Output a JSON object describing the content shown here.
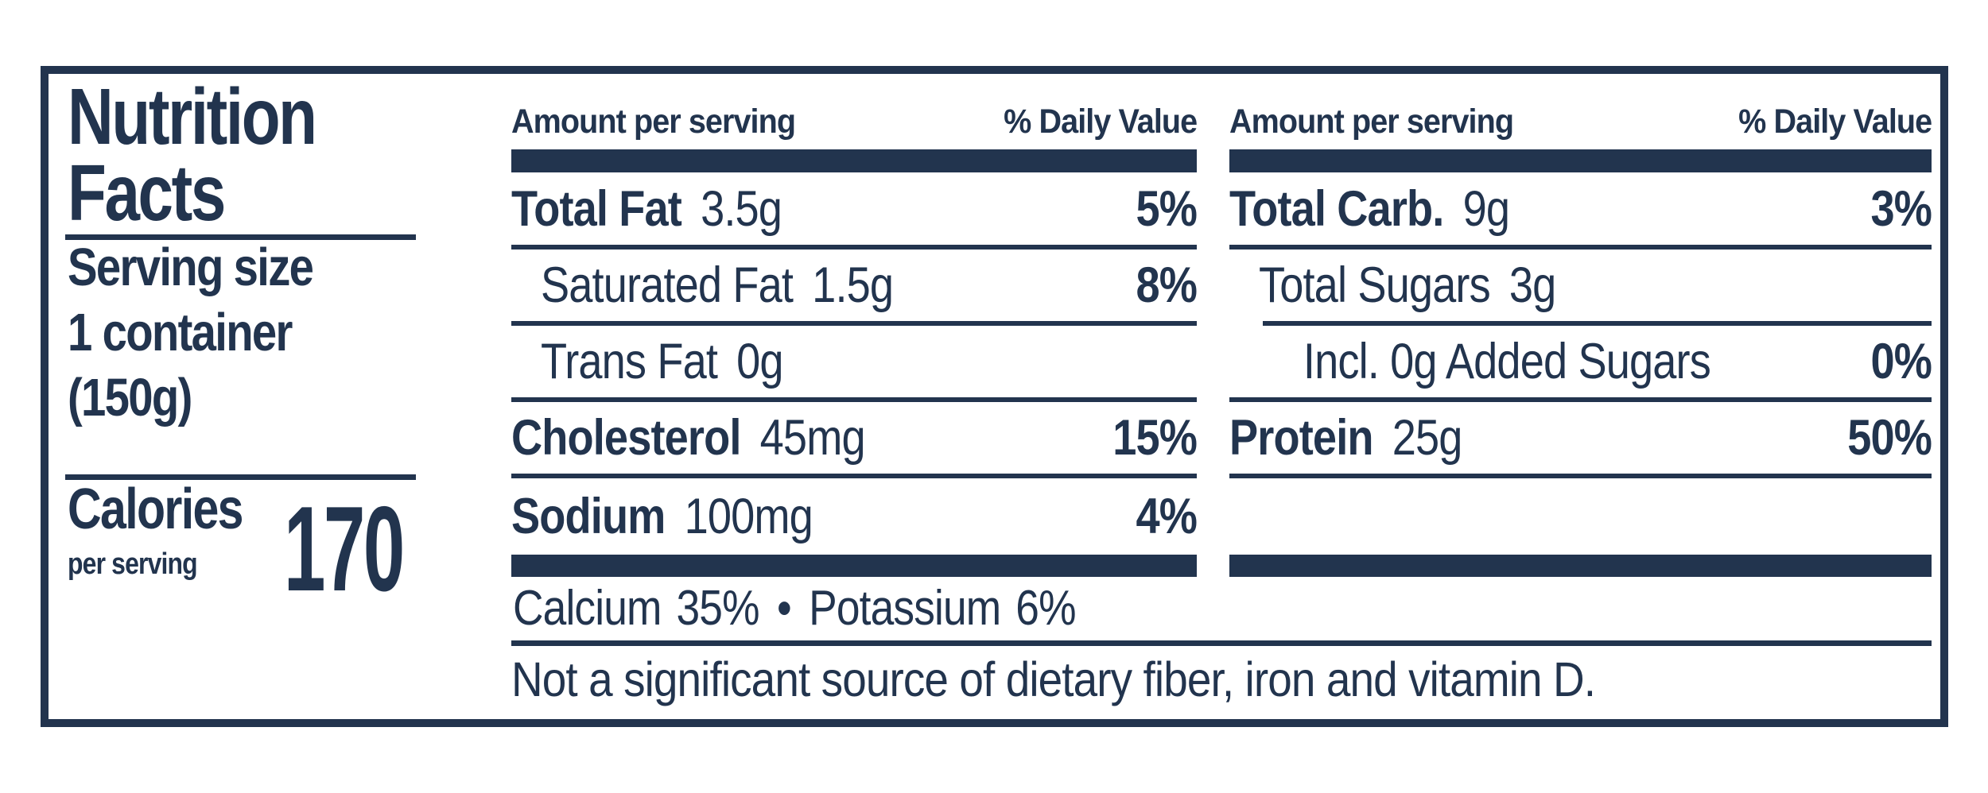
{
  "nutrition_label": {
    "title": {
      "line1": "Nutrition",
      "line2": "Facts"
    },
    "serving": {
      "label": "Serving size",
      "line1": "1 container",
      "line2": "(150g)"
    },
    "calories": {
      "label": "Calories",
      "sublabel": "per serving",
      "value": "170"
    },
    "columns": [
      {
        "header_left": "Amount per serving",
        "header_right": "% Daily Value",
        "rows": [
          {
            "name": "Total Fat",
            "amount": "3.5g",
            "dv": "5%"
          },
          {
            "name": "Saturated Fat",
            "amount": "1.5g",
            "dv": "8%"
          },
          {
            "name": "Trans Fat",
            "amount": "0g",
            "dv": ""
          },
          {
            "name": "Cholesterol",
            "amount": "45mg",
            "dv": "15%"
          },
          {
            "name": "Sodium",
            "amount": "100mg",
            "dv": "4%"
          }
        ]
      },
      {
        "header_left": "Amount per serving",
        "header_right": "% Daily Value",
        "rows": [
          {
            "name": "Total Carb.",
            "amount": "9g",
            "dv": "3%"
          },
          {
            "name": "Total Sugars",
            "amount": "3g",
            "dv": ""
          },
          {
            "name": "Incl. 0g Added Sugars",
            "amount": "",
            "dv": "0%"
          },
          {
            "name": "Protein",
            "amount": "25g",
            "dv": "50%"
          }
        ]
      }
    ],
    "minerals": {
      "items": [
        {
          "name": "Calcium",
          "value": "35%"
        },
        {
          "name": "Potassium",
          "value": "6%"
        }
      ],
      "separator": "•"
    },
    "footnote": "Not a significant source of dietary fiber, iron and vitamin D.",
    "colors": {
      "ink": "#22344e",
      "paper": "#ffffff"
    }
  }
}
